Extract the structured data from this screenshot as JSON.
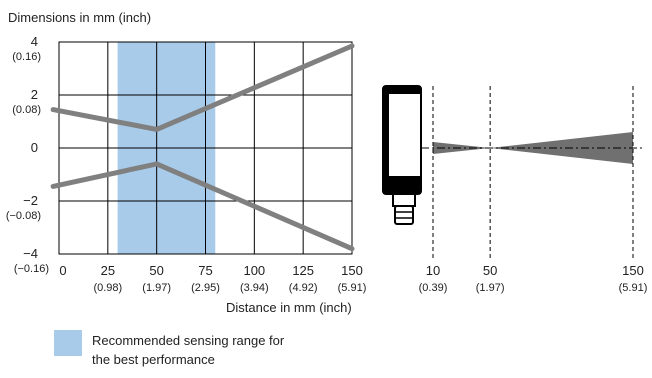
{
  "chart_data": {
    "type": "line",
    "ylabel": "Dimensions in mm (inch)",
    "xlabel": "Distance in mm (inch)",
    "xlim": [
      0,
      150
    ],
    "ylim": [
      -4,
      4
    ],
    "grid": true,
    "x_ticks": [
      {
        "value": 0,
        "label": "0",
        "sub": ""
      },
      {
        "value": 25,
        "label": "25",
        "sub": "(0.98)"
      },
      {
        "value": 50,
        "label": "50",
        "sub": "(1.97)"
      },
      {
        "value": 75,
        "label": "75",
        "sub": "(2.95)"
      },
      {
        "value": 100,
        "label": "100",
        "sub": "(3.94)"
      },
      {
        "value": 125,
        "label": "125",
        "sub": "(4.92)"
      },
      {
        "value": 150,
        "label": "150",
        "sub": "(5.91)"
      }
    ],
    "y_ticks": [
      {
        "value": 4,
        "label": "4",
        "sub": "(0.16)"
      },
      {
        "value": 2,
        "label": "2",
        "sub": "(0.08)"
      },
      {
        "value": 0,
        "label": "0",
        "sub": ""
      },
      {
        "value": -2,
        "label": "−2",
        "sub": "(−0.08)"
      },
      {
        "value": -4,
        "label": "−4",
        "sub": "(−0.16)"
      }
    ],
    "highlight_range": {
      "x": [
        30,
        80
      ],
      "color": "#a9cbea",
      "legend": "Recommended sensing range for the best performance"
    },
    "series": [
      {
        "color": "#808080",
        "points": [
          [
            -3,
            1.45
          ],
          [
            50,
            0.7
          ],
          [
            150,
            3.85
          ]
        ]
      },
      {
        "color": "#808080",
        "points": [
          [
            -3,
            -1.45
          ],
          [
            50,
            -0.6
          ],
          [
            150,
            -3.8
          ]
        ]
      }
    ],
    "sensor_diagram": {
      "beam_color": "#707070",
      "markers": [
        {
          "value": 10,
          "label": "10",
          "sub": "(0.39)"
        },
        {
          "value": 50,
          "label": "50",
          "sub": "(1.97)"
        },
        {
          "value": 150,
          "label": "150",
          "sub": "(5.91)"
        }
      ]
    },
    "legend": {
      "text_line1": "Recommended sensing range for",
      "text_line2": "the best performance"
    }
  }
}
